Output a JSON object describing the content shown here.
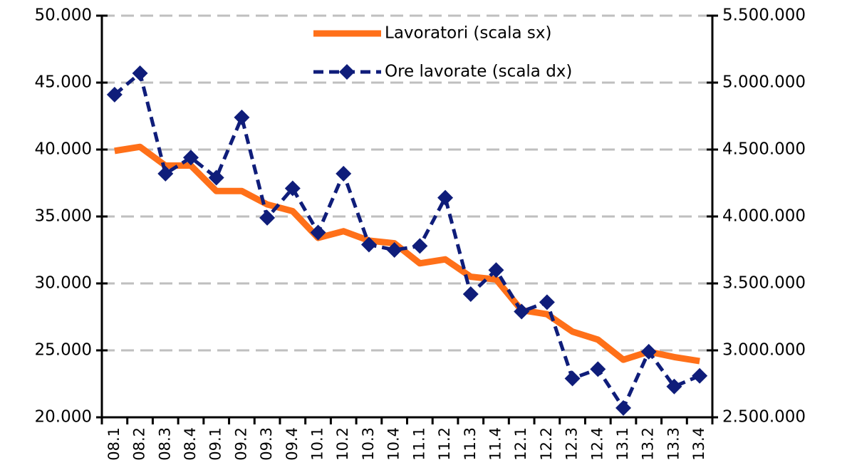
{
  "chart_data": {
    "type": "line",
    "categories": [
      "08.1",
      "08.2",
      "08.3",
      "08.4",
      "09.1",
      "09.2",
      "09.3",
      "09.4",
      "10.1",
      "10.2",
      "10.3",
      "10.4",
      "11.1",
      "11.2",
      "11.3",
      "11.4",
      "12.1",
      "12.2",
      "12.3",
      "12.4",
      "13.1",
      "13.2",
      "13.3",
      "13.4"
    ],
    "series": [
      {
        "name": "Lavoratori (scala sx)",
        "color": "#ff7019",
        "axis": "y",
        "marker": "none",
        "dashed": false,
        "values": [
          39900,
          40200,
          38800,
          38800,
          36900,
          36900,
          35900,
          35400,
          33400,
          33900,
          33200,
          33000,
          31500,
          31800,
          30500,
          30300,
          28000,
          27700,
          26400,
          25800,
          24300,
          24900,
          24500,
          24200
        ]
      },
      {
        "name": "Ore lavorate (scala dx)",
        "color": "#0f1d7a",
        "axis": "y2",
        "marker": "diamond",
        "dashed": true,
        "values": [
          4910000,
          5070000,
          4320000,
          4440000,
          4290000,
          4740000,
          3990000,
          4210000,
          3880000,
          4320000,
          3790000,
          3750000,
          3780000,
          4140000,
          3420000,
          3600000,
          3290000,
          3360000,
          2790000,
          2860000,
          2570000,
          2990000,
          2730000,
          2810000
        ]
      }
    ],
    "ylim": [
      20000,
      50000
    ],
    "yticks": [
      {
        "value": 20000,
        "label": "20.000"
      },
      {
        "value": 25000,
        "label": "25.000"
      },
      {
        "value": 30000,
        "label": "30.000"
      },
      {
        "value": 35000,
        "label": "35.000"
      },
      {
        "value": 40000,
        "label": "40.000"
      },
      {
        "value": 45000,
        "label": "45.000"
      },
      {
        "value": 50000,
        "label": "50.000"
      }
    ],
    "y2lim": [
      2500000,
      5500000
    ],
    "y2ticks": [
      {
        "value": 2500000,
        "label": "2.500.000"
      },
      {
        "value": 3000000,
        "label": "3.000.000"
      },
      {
        "value": 3500000,
        "label": "3.500.000"
      },
      {
        "value": 4000000,
        "label": "4.000.000"
      },
      {
        "value": 4500000,
        "label": "4.500.000"
      },
      {
        "value": 5000000,
        "label": "5.000.000"
      },
      {
        "value": 5500000,
        "label": "5.500.000"
      }
    ],
    "grid": true,
    "legend": "top"
  }
}
